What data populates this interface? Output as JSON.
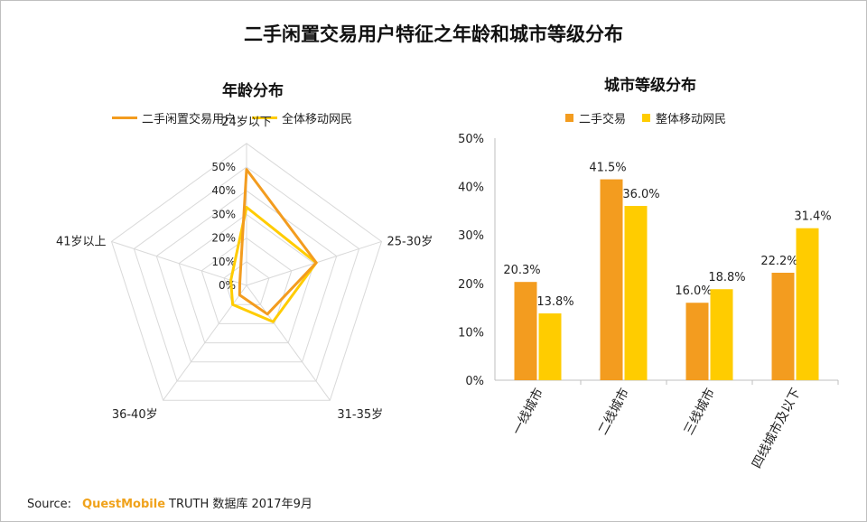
{
  "title": "二手闲置交易用户特征之年龄和城市等级分布",
  "source": {
    "label": "Source:",
    "brand": "QuestMobile",
    "rest": "TRUTH 数据库 2017年9月"
  },
  "colors": {
    "orange": "#f39c1f",
    "yellow": "#ffcc00",
    "grid": "#d9d9d9",
    "axis": "#bfbfbf"
  },
  "chart_data": [
    {
      "type": "radar",
      "title": "年龄分布",
      "categories": [
        "24岁以下",
        "25-30岁",
        "31-35岁",
        "36-40岁",
        "41岁以上"
      ],
      "rlim": [
        0,
        50
      ],
      "ticks": [
        "0%",
        "10%",
        "20%",
        "30%",
        "40%",
        "50%"
      ],
      "series": [
        {
          "name": "二手闲置交易用户",
          "values": [
            49,
            31,
            15,
            5,
            3
          ]
        },
        {
          "name": "全体移动网民",
          "values": [
            33,
            31,
            19,
            10,
            7
          ]
        }
      ],
      "legend_position": "top"
    },
    {
      "type": "bar",
      "title": "城市等级分布",
      "categories": [
        "一线城市",
        "二线城市",
        "三线城市",
        "四线城市及以下"
      ],
      "ylim": [
        0,
        50
      ],
      "yticks": [
        "0%",
        "10%",
        "20%",
        "30%",
        "40%",
        "50%"
      ],
      "series": [
        {
          "name": "二手交易",
          "values": [
            20.3,
            41.5,
            16.0,
            22.2
          ],
          "labels": [
            "20.3%",
            "41.5%",
            "16.0%",
            "22.2%"
          ]
        },
        {
          "name": "整体移动网民",
          "values": [
            13.8,
            36.0,
            18.8,
            31.4
          ],
          "labels": [
            "13.8%",
            "36.0%",
            "18.8%",
            "31.4%"
          ]
        }
      ],
      "legend_position": "top"
    }
  ]
}
